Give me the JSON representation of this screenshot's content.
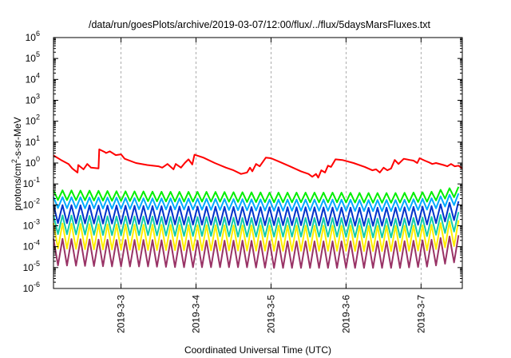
{
  "chart_data": {
    "type": "line",
    "title": "/data/run/goesPlots/archive/2019-03-07/12:00/flux/../flux/5daysMarsFluxes.txt",
    "xlabel": "Coordinated Universal Time (UTC)",
    "ylabel_base": "protons/cm",
    "ylabel_sup": "2",
    "ylabel_rest": "-s-sr-MeV",
    "y_scale": "log",
    "y_exponent_range": [
      -6,
      6
    ],
    "y_tick_base": "10",
    "y_tick_exponents": [
      "6",
      "5",
      "4",
      "3",
      "2",
      "1",
      "0",
      "-1",
      "-2",
      "-3",
      "-4",
      "-5",
      "-6"
    ],
    "x_range_days": [
      2.1,
      7.55
    ],
    "x_tick_labels": [
      "2019-3-3",
      "2019-3-4",
      "2019-3-5",
      "2019-3-6",
      "2019-3-7"
    ],
    "x_tick_days": [
      3,
      4,
      5,
      6,
      7
    ],
    "grid": true,
    "legend": "none",
    "series": [
      {
        "color": "#ff0000",
        "points": [
          [
            2.1,
            2.3
          ],
          [
            2.2,
            1.4
          ],
          [
            2.3,
            0.9
          ],
          [
            2.35,
            0.55
          ],
          [
            2.42,
            0.35
          ],
          [
            2.43,
            0.8
          ],
          [
            2.5,
            0.5
          ],
          [
            2.55,
            0.9
          ],
          [
            2.6,
            0.6
          ],
          [
            2.7,
            0.55
          ],
          [
            2.71,
            4.5
          ],
          [
            2.78,
            3.4
          ],
          [
            2.8,
            3.0
          ],
          [
            2.85,
            3.6
          ],
          [
            2.93,
            2.4
          ],
          [
            3.0,
            2.6
          ],
          [
            3.05,
            1.6
          ],
          [
            3.2,
            1.0
          ],
          [
            3.35,
            0.8
          ],
          [
            3.5,
            0.7
          ],
          [
            3.55,
            0.6
          ],
          [
            3.62,
            0.9
          ],
          [
            3.7,
            0.5
          ],
          [
            3.73,
            0.9
          ],
          [
            3.8,
            0.6
          ],
          [
            3.85,
            1.0
          ],
          [
            3.9,
            1.5
          ],
          [
            3.95,
            0.85
          ],
          [
            3.98,
            2.5
          ],
          [
            4.1,
            1.8
          ],
          [
            4.25,
            1.0
          ],
          [
            4.4,
            0.6
          ],
          [
            4.5,
            0.45
          ],
          [
            4.6,
            0.3
          ],
          [
            4.68,
            0.35
          ],
          [
            4.72,
            0.6
          ],
          [
            4.75,
            0.4
          ],
          [
            4.8,
            0.9
          ],
          [
            4.85,
            0.7
          ],
          [
            4.93,
            1.8
          ],
          [
            5.0,
            1.7
          ],
          [
            5.1,
            1.2
          ],
          [
            5.25,
            0.7
          ],
          [
            5.4,
            0.4
          ],
          [
            5.5,
            0.3
          ],
          [
            5.55,
            0.22
          ],
          [
            5.6,
            0.3
          ],
          [
            5.63,
            0.2
          ],
          [
            5.67,
            0.45
          ],
          [
            5.72,
            0.35
          ],
          [
            5.76,
            0.75
          ],
          [
            5.8,
            0.65
          ],
          [
            5.86,
            1.5
          ],
          [
            5.95,
            1.4
          ],
          [
            6.1,
            1.0
          ],
          [
            6.25,
            0.65
          ],
          [
            6.35,
            0.45
          ],
          [
            6.4,
            0.5
          ],
          [
            6.45,
            0.35
          ],
          [
            6.5,
            0.6
          ],
          [
            6.55,
            0.45
          ],
          [
            6.6,
            0.55
          ],
          [
            6.65,
            1.4
          ],
          [
            6.7,
            0.9
          ],
          [
            6.77,
            1.6
          ],
          [
            6.85,
            1.4
          ],
          [
            6.9,
            1.3
          ],
          [
            6.95,
            1.0
          ],
          [
            6.98,
            1.7
          ],
          [
            7.05,
            1.3
          ],
          [
            7.1,
            1.1
          ],
          [
            7.15,
            0.9
          ],
          [
            7.2,
            1.0
          ],
          [
            7.3,
            0.8
          ],
          [
            7.35,
            0.7
          ],
          [
            7.4,
            0.9
          ],
          [
            7.45,
            0.7
          ],
          [
            7.5,
            0.75
          ],
          [
            7.55,
            0.55
          ]
        ]
      },
      {
        "color": "#00ee00",
        "base": [
          0.031,
          0.03,
          0.028,
          0.027,
          0.026,
          0.026,
          0.025,
          0.024,
          0.024,
          0.024,
          0.023,
          0.023,
          0.026,
          0.048
        ],
        "spike": 1.6,
        "drop": 0.55
      },
      {
        "color": "#00aaff",
        "base": [
          0.014,
          0.0135,
          0.013,
          0.012,
          0.012,
          0.0115,
          0.011,
          0.0105,
          0.0105,
          0.0105,
          0.01,
          0.01,
          0.012,
          0.022
        ],
        "spike": 1.7,
        "drop": 0.5
      },
      {
        "color": "#0033cc",
        "base": [
          0.0045,
          0.0043,
          0.0042,
          0.004,
          0.0038,
          0.0037,
          0.0036,
          0.0035,
          0.0035,
          0.0034,
          0.0033,
          0.0034,
          0.0039,
          0.007
        ],
        "spike": 2.2,
        "drop": 0.3
      },
      {
        "color": "#11ccaa",
        "base": [
          0.0016,
          0.0015,
          0.0014,
          0.0014,
          0.0013,
          0.0013,
          0.0012,
          0.0012,
          0.0012,
          0.0012,
          0.0011,
          0.0011,
          0.0013,
          0.0024
        ],
        "spike": 2.0,
        "drop": 0.25
      },
      {
        "color": "#ffee00",
        "base": [
          0.00055,
          0.0005,
          0.00048,
          0.00046,
          0.00045,
          0.00044,
          0.00043,
          0.00042,
          0.00042,
          0.00042,
          0.00041,
          0.00041,
          0.00045,
          0.0008
        ],
        "spike": 2.4,
        "drop": 0.15
      },
      {
        "color": "#993366",
        "base": [
          0.00016,
          0.00015,
          0.00014,
          0.00014,
          0.00013,
          0.00013,
          0.00013,
          0.00012,
          0.00012,
          0.00012,
          0.00012,
          0.00012,
          0.00014,
          0.00025
        ],
        "spike": 1.5,
        "drop": 0.08
      }
    ]
  }
}
